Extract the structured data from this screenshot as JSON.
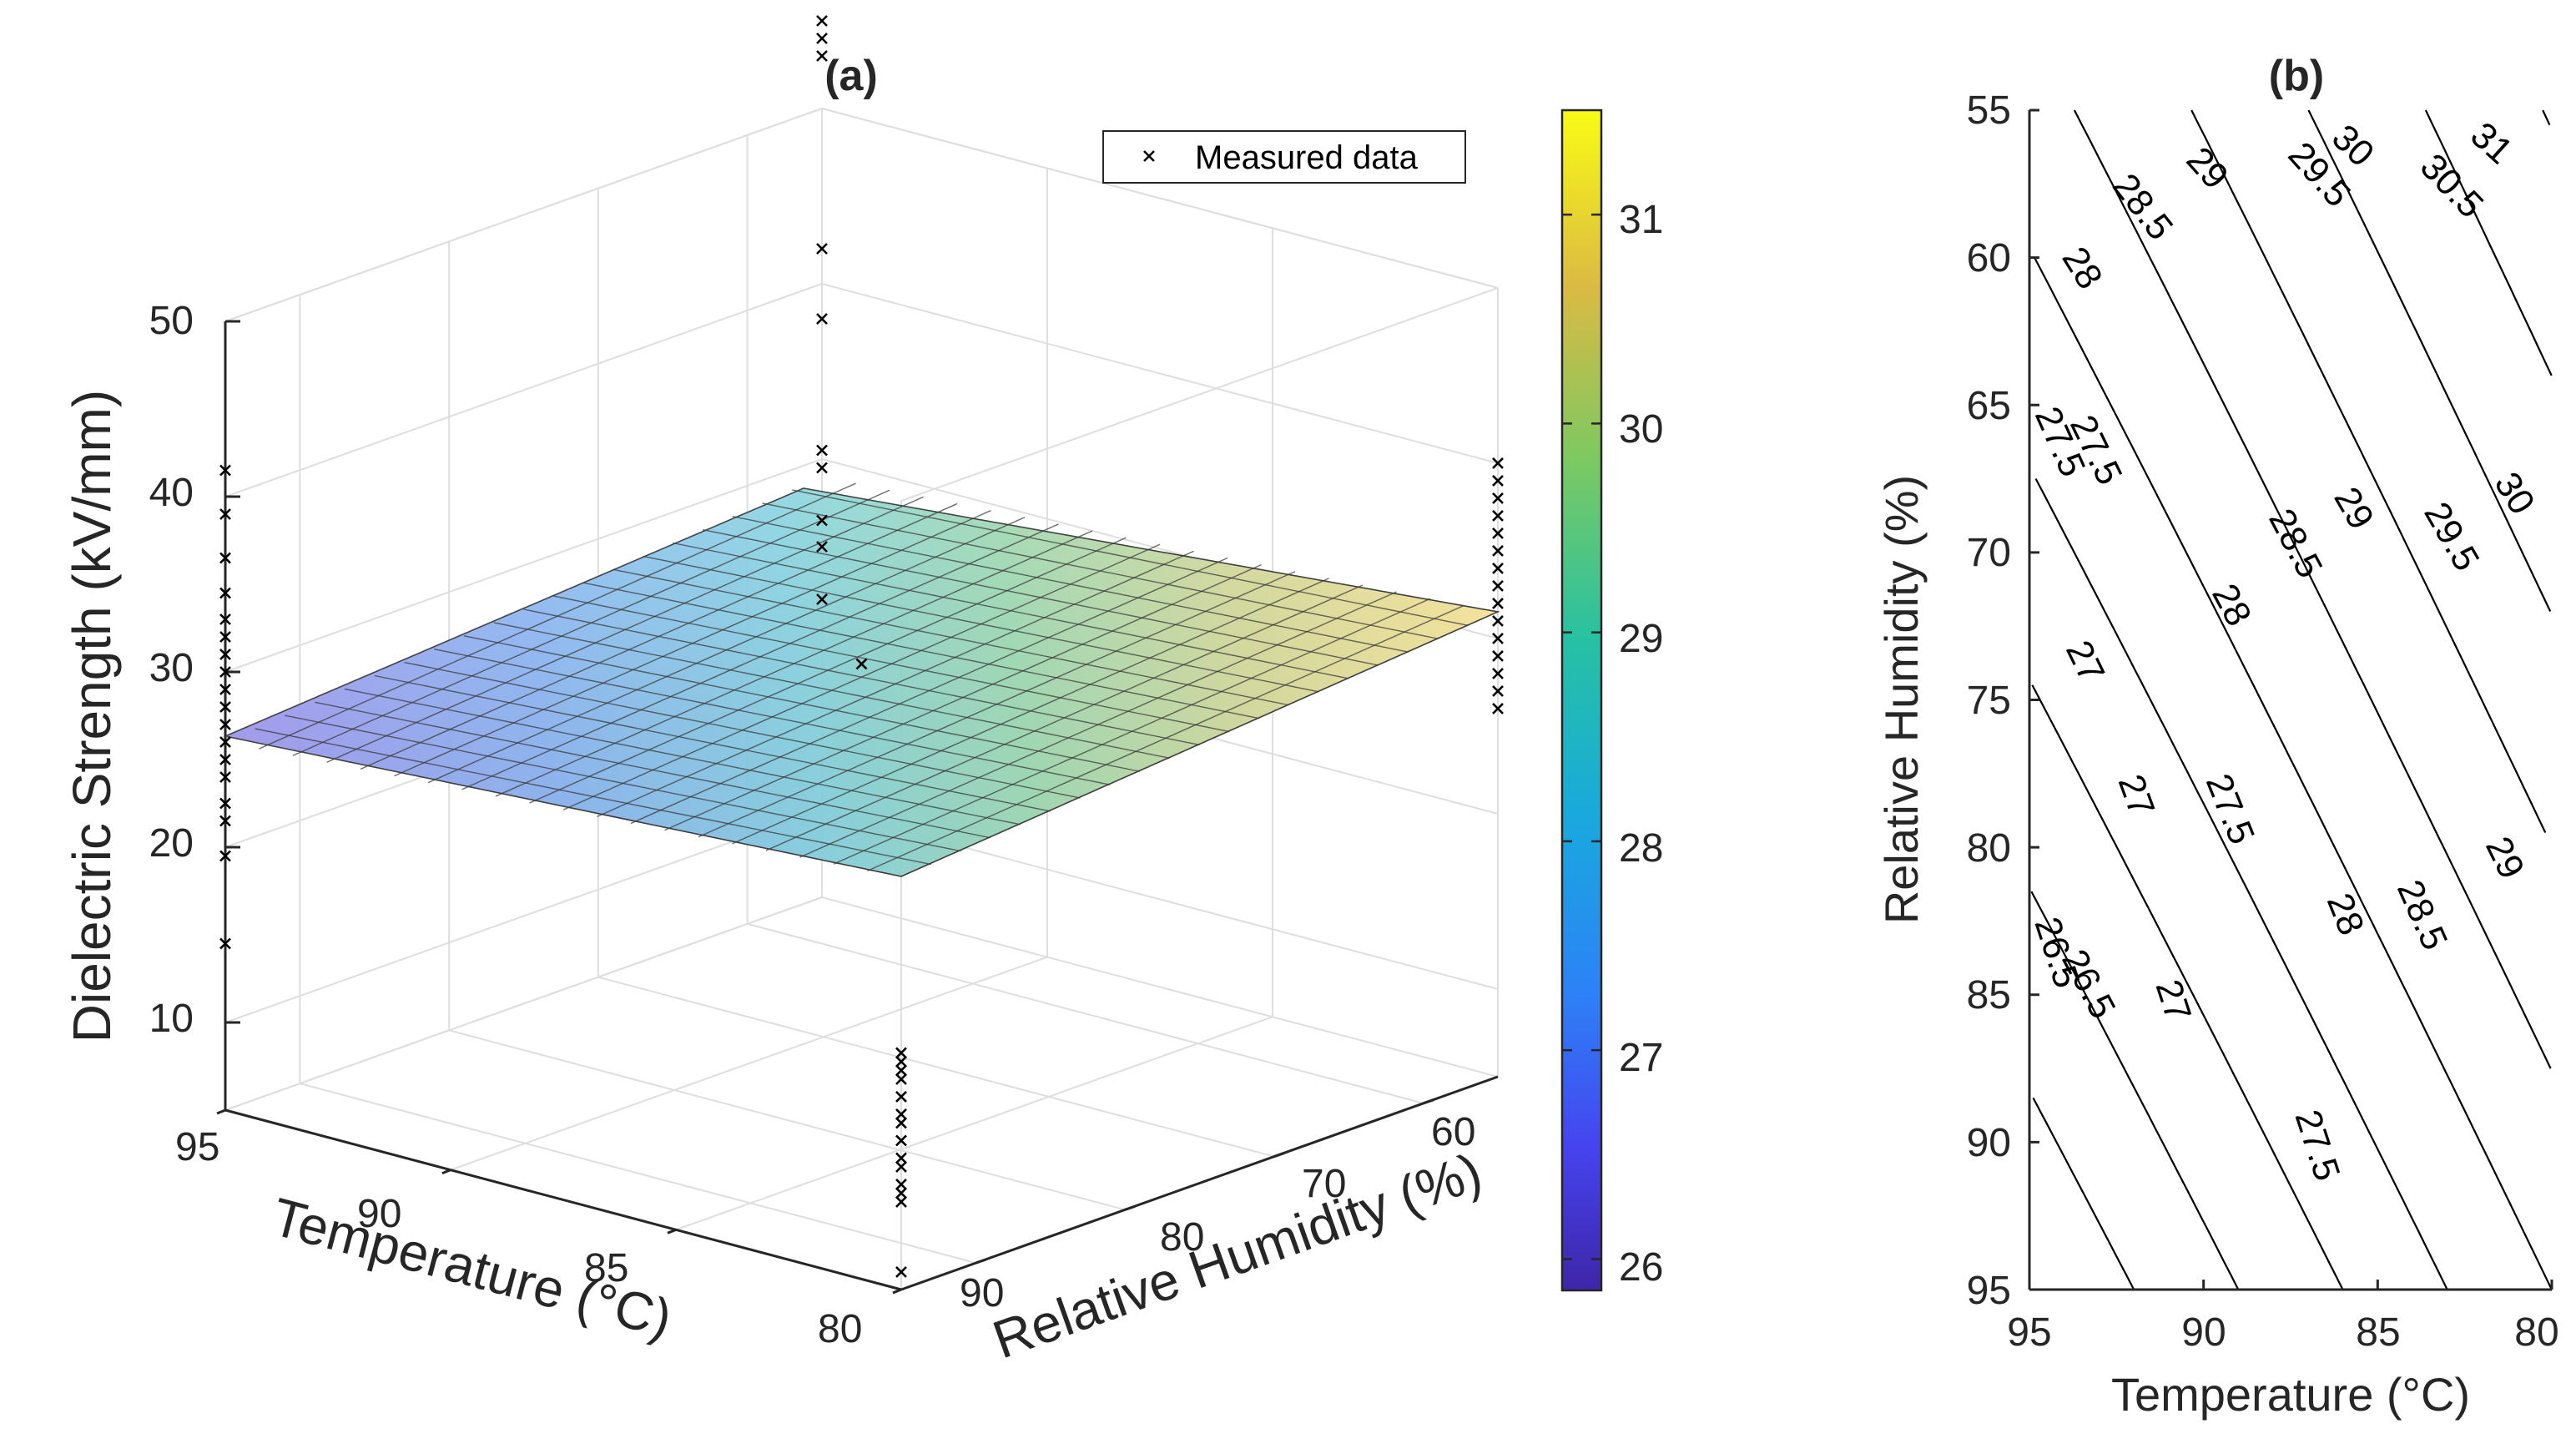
{
  "colors": {
    "axis": "#262626",
    "grid": "#dcdcdc",
    "marker": "#000000",
    "contour": "#000000"
  },
  "chart_data": [
    {
      "panel": "(a)",
      "type": "surface",
      "xlabel": "Temperature (°C)",
      "ylabel": "Relative Humidity (%)",
      "zlabel": "Dielectric Strength (kV/mm)",
      "x_ticks": [
        "95",
        "90",
        "85",
        "80"
      ],
      "y_ticks": [
        "60",
        "70",
        "80",
        "90"
      ],
      "z_ticks": [
        "10",
        "20",
        "30",
        "40",
        "50"
      ],
      "xlim": [
        80,
        95
      ],
      "ylim": [
        55,
        95
      ],
      "zlim": [
        5,
        50
      ],
      "surface_corners": [
        {
          "T": 95,
          "RH": 95,
          "z": 26
        },
        {
          "T": 80,
          "RH": 95,
          "z": 28.5
        },
        {
          "T": 80,
          "RH": 55,
          "z": 31.5
        },
        {
          "T": 95,
          "RH": 55,
          "z": 29
        }
      ],
      "colorbar": {
        "ticks": [
          "26",
          "27",
          "28",
          "29",
          "30",
          "31"
        ],
        "range": [
          25.85,
          31.5
        ]
      },
      "legend": "Measured data",
      "measured_data": [
        {
          "T": 95,
          "RH": 95,
          "z": [
            14.5,
            19.5,
            21.5,
            22.5,
            24,
            25,
            26,
            27,
            28,
            29,
            30,
            31,
            32,
            33,
            34.5,
            36.5,
            39,
            41.5
          ]
        },
        {
          "T": 80,
          "RH": 95,
          "z": [
            6,
            10,
            10.5,
            11,
            12,
            12.5,
            13.5,
            14.5,
            15,
            16,
            17,
            17.5,
            18,
            18.5
          ]
        },
        {
          "T": 80,
          "RH": 55,
          "z": [
            26,
            27,
            28,
            29,
            30,
            31,
            32,
            33,
            34,
            35,
            36,
            37,
            38,
            39,
            40
          ]
        },
        {
          "T": 95,
          "RH": 55,
          "z": [
            22,
            25,
            26.5,
            29.5,
            30.5,
            38,
            42,
            53,
            54,
            55
          ]
        },
        {
          "T": 87.5,
          "RH": 75,
          "z": [
            29.5
          ]
        }
      ]
    },
    {
      "panel": "(b)",
      "type": "contour",
      "xlabel": "Temperature (°C)",
      "ylabel": "Relative Humidity (%)",
      "x_ticks": [
        "95",
        "90",
        "85",
        "80"
      ],
      "y_ticks": [
        "55",
        "60",
        "65",
        "70",
        "75",
        "80",
        "85",
        "90",
        "95"
      ],
      "xlim": [
        95,
        80
      ],
      "ylim": [
        55,
        95
      ],
      "contour_levels": [
        26.5,
        27,
        27.5,
        28,
        28.5,
        29,
        29.5,
        30,
        30.5,
        31
      ],
      "contour_labels": [
        "26.5",
        "27",
        "27.5",
        "28",
        "28.5",
        "29",
        "29.5",
        "30",
        "30.5",
        "31",
        "27.5",
        "28",
        "28.5",
        "29",
        "29.5",
        "30",
        "27",
        "27.5",
        "28",
        "28.5",
        "29",
        "26.5",
        "27",
        "27.5"
      ]
    }
  ]
}
